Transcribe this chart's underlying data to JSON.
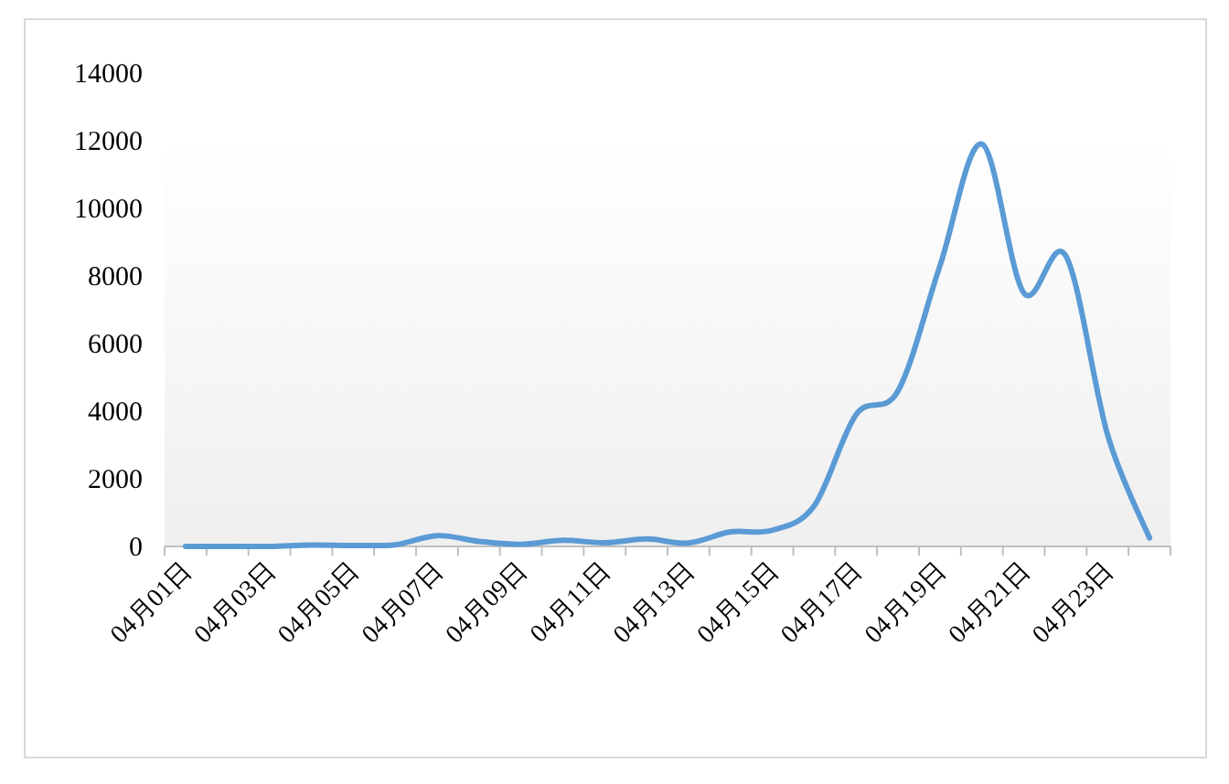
{
  "chart_data": {
    "type": "line",
    "categories": [
      "04月01日",
      null,
      "04月03日",
      null,
      "04月05日",
      null,
      "04月07日",
      null,
      "04月09日",
      null,
      "04月11日",
      null,
      "04月13日",
      null,
      "04月15日",
      null,
      "04月17日",
      null,
      "04月19日",
      null,
      "04月21日",
      null,
      "04月23日",
      null
    ],
    "series": [
      {
        "color": "#5b9bd5",
        "values": [
          0,
          0,
          0,
          40,
          30,
          50,
          320,
          150,
          60,
          180,
          110,
          220,
          100,
          430,
          480,
          1200,
          3900,
          4600,
          8300,
          11900,
          7500,
          8600,
          3300,
          250
        ]
      }
    ],
    "ylim": [
      0,
      14000
    ],
    "yticks": [
      0,
      2000,
      4000,
      6000,
      8000,
      10000,
      12000,
      14000
    ],
    "grid": false,
    "marker": "none",
    "line_style": "solid"
  }
}
